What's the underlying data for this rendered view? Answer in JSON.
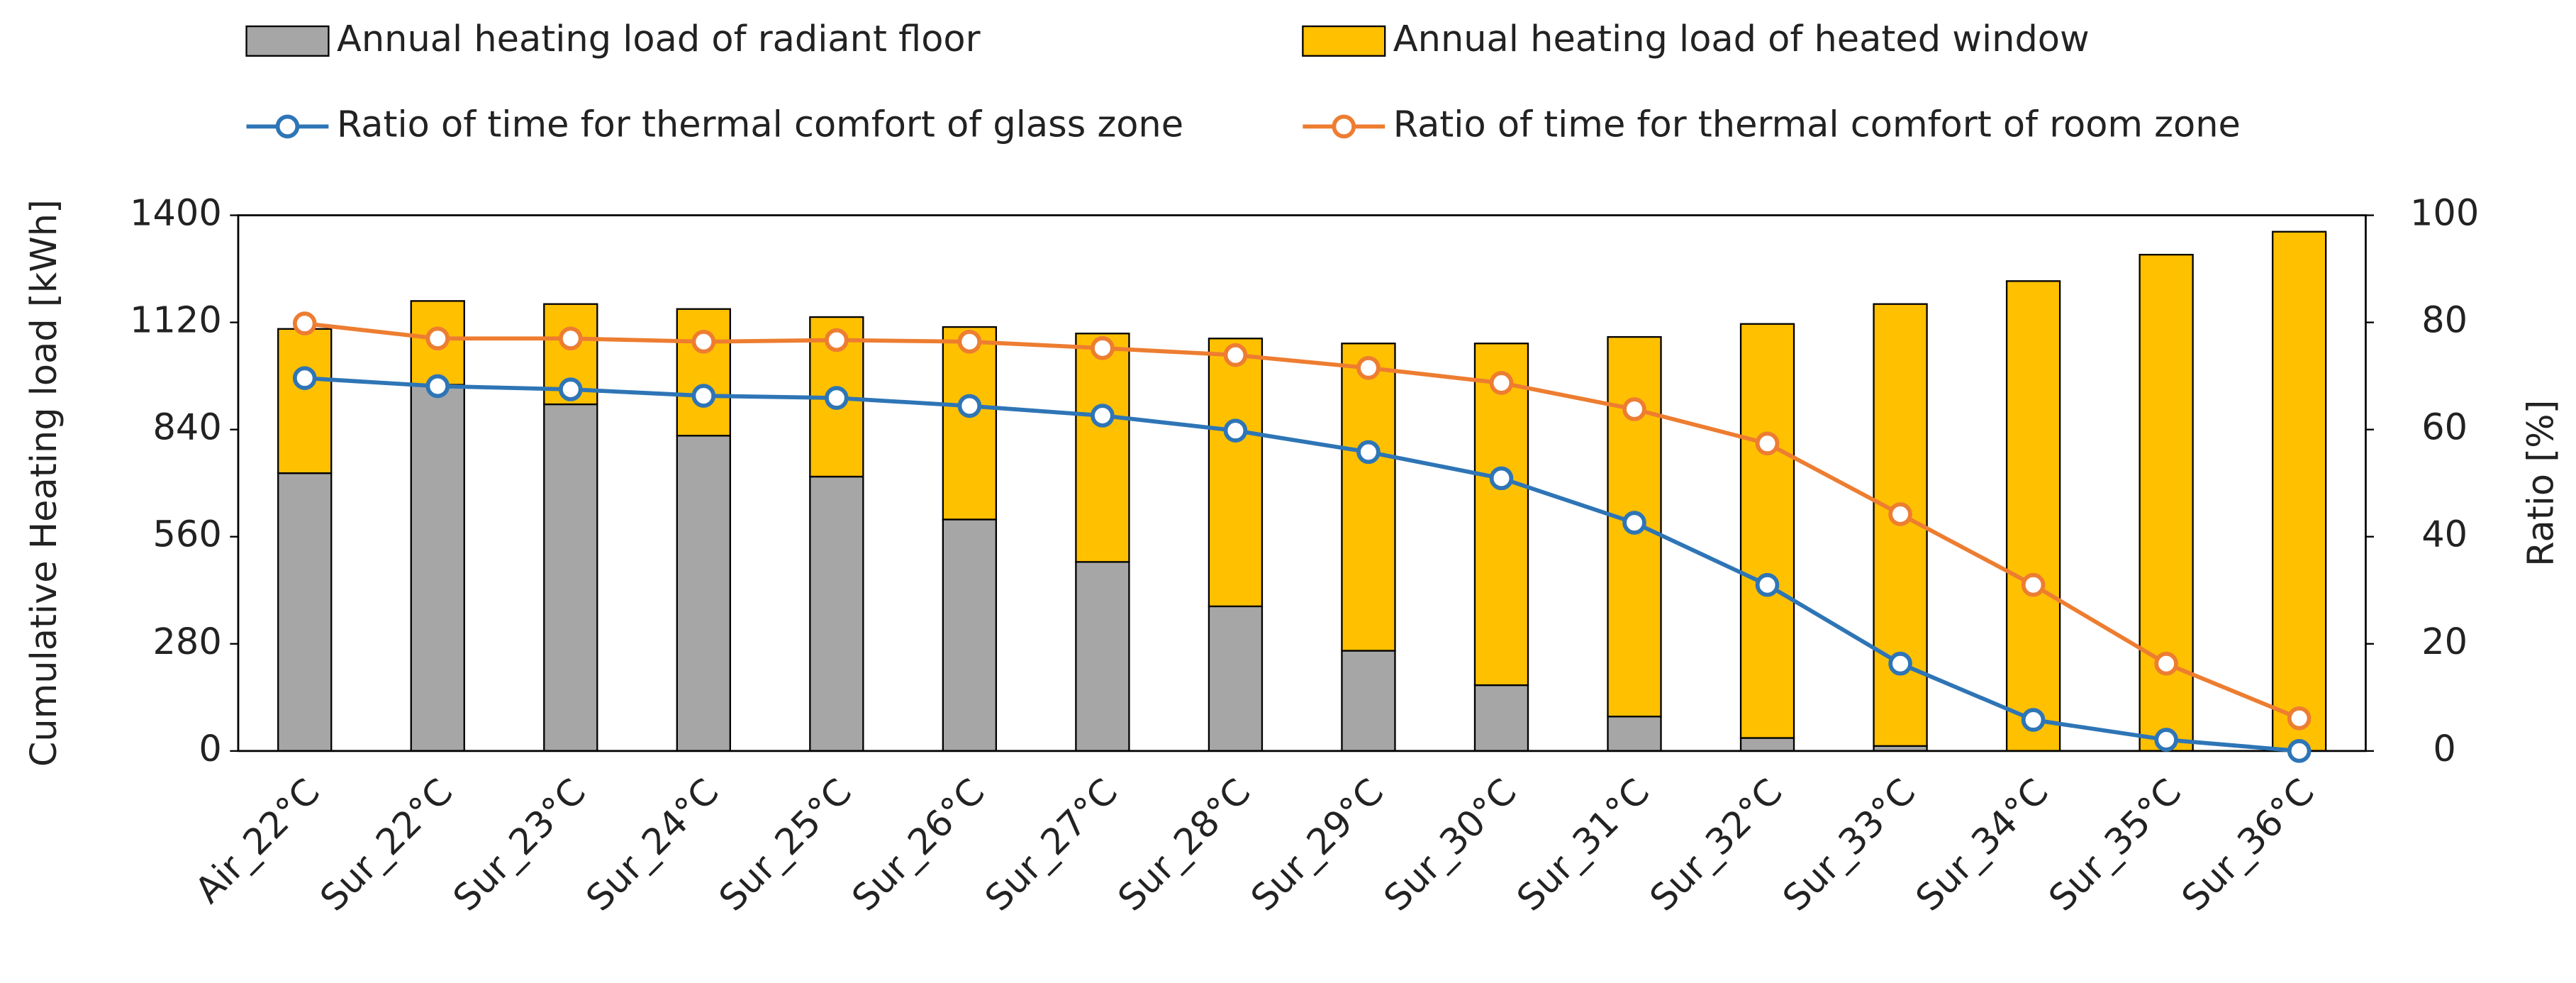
{
  "chart_data": {
    "type": "bar_line",
    "y_label": "Cumulative Heating load [kWh]",
    "y2_label": "Ratio [%]",
    "categories": [
      "Air_22°C",
      "Sur_22°C",
      "Sur_23°C",
      "Sur_24°C",
      "Sur_25°C",
      "Sur_26°C",
      "Sur_27°C",
      "Sur_28°C",
      "Sur_29°C",
      "Sur_30°C",
      "Sur_31°C",
      "Sur_32°C",
      "Sur_33°C",
      "Sur_34°C",
      "Sur_35°C",
      "Sur_36°C"
    ],
    "ylim": [
      0,
      1400
    ],
    "yticks": [
      0,
      280,
      560,
      840,
      1120,
      1400
    ],
    "y2lim": [
      0,
      100
    ],
    "y2ticks": [
      0,
      20,
      40,
      60,
      80,
      100
    ],
    "grid": false,
    "legend": "top",
    "series": [
      {
        "name": "Annual heating load of radiant floor",
        "type": "bar",
        "color": "#a6a6a6",
        "values": [
          726,
          957,
          906,
          824,
          717,
          605,
          494,
          378,
          262,
          172,
          90,
          34,
          13,
          0,
          0,
          0
        ]
      },
      {
        "name": "Annual heating load of heated window",
        "type": "bar",
        "color": "#ffc000",
        "values": [
          377,
          219,
          262,
          331,
          417,
          503,
          597,
          700,
          803,
          893,
          992,
          1082,
          1155,
          1228,
          1297,
          1357
        ]
      },
      {
        "name": "Ratio of time for thermal comfort of glass zone",
        "type": "line",
        "axis": "y2",
        "color": "#2e75b6",
        "values": [
          69.6,
          68.1,
          67.5,
          66.3,
          65.9,
          64.4,
          62.6,
          59.8,
          55.8,
          50.9,
          42.6,
          31.0,
          16.3,
          5.8,
          2.1,
          0
        ]
      },
      {
        "name": "Ratio of time for thermal comfort of room zone",
        "type": "line",
        "axis": "y2",
        "color": "#ed7d31",
        "values": [
          79.8,
          77.0,
          77.0,
          76.4,
          76.7,
          76.4,
          75.2,
          73.9,
          71.5,
          68.7,
          63.8,
          57.4,
          44.2,
          31.0,
          16.3,
          6.1
        ]
      }
    ]
  }
}
